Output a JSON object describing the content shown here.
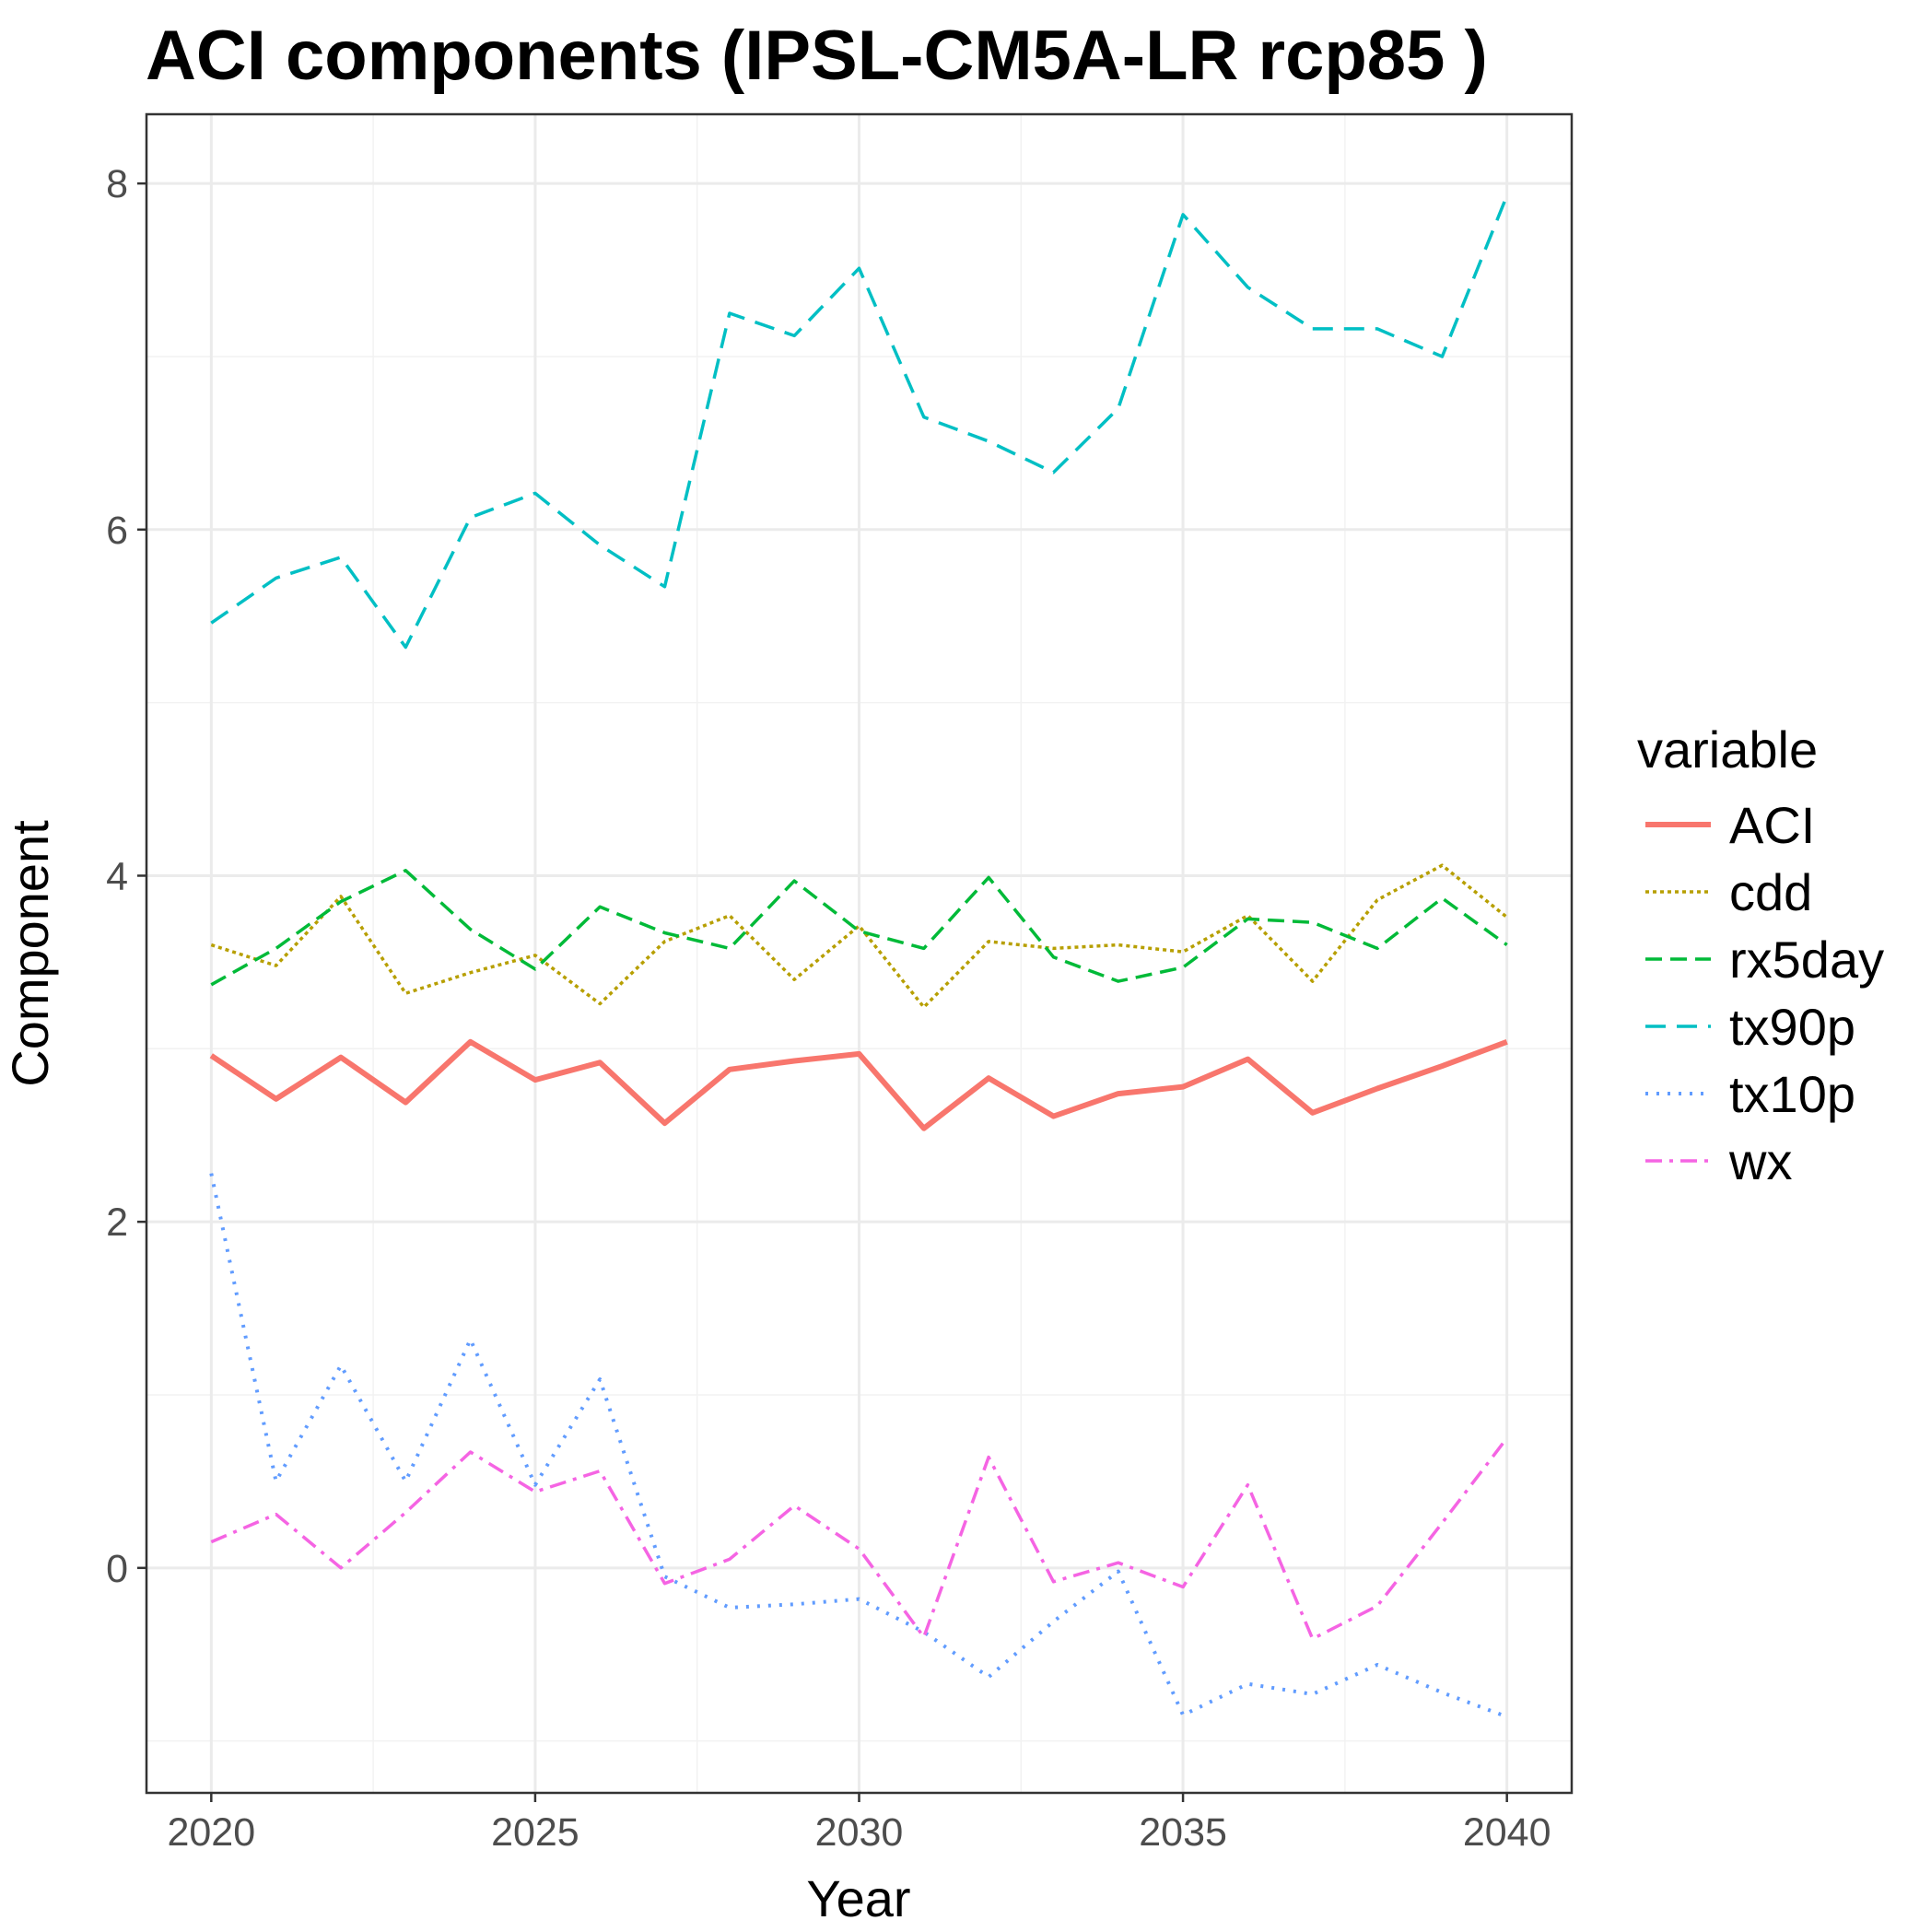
{
  "chart_data": {
    "type": "line",
    "title": "ACI components (IPSL-CM5A-LR rcp85 )",
    "xlabel": "Year",
    "ylabel": "Component",
    "x": [
      2020,
      2021,
      2022,
      2023,
      2024,
      2025,
      2026,
      2027,
      2028,
      2029,
      2030,
      2031,
      2032,
      2033,
      2034,
      2035,
      2036,
      2037,
      2038,
      2039,
      2040
    ],
    "xlim": [
      2019,
      2041
    ],
    "ylim": [
      -1.3,
      8.4
    ],
    "x_ticks": [
      "2020",
      "2025",
      "2030",
      "2035",
      "2040"
    ],
    "y_ticks": [
      "0",
      "2",
      "4",
      "6",
      "8"
    ],
    "grid": true,
    "legend_title": "variable",
    "legend_position": "right",
    "series": [
      {
        "name": "ACI",
        "color": "#F8766D",
        "dash": "solid",
        "width": 6,
        "values": [
          2.96,
          2.71,
          2.95,
          2.69,
          3.04,
          2.82,
          2.92,
          2.57,
          2.88,
          2.93,
          2.97,
          2.54,
          2.83,
          2.61,
          2.74,
          2.78,
          2.94,
          2.63,
          2.77,
          2.9,
          3.04
        ]
      },
      {
        "name": "cdd",
        "color": "#B79F00",
        "dash": "4 4",
        "width": 3.5,
        "values": [
          3.6,
          3.48,
          3.88,
          3.32,
          3.44,
          3.54,
          3.26,
          3.62,
          3.77,
          3.4,
          3.71,
          3.24,
          3.62,
          3.58,
          3.6,
          3.56,
          3.77,
          3.39,
          3.86,
          4.06,
          3.76
        ]
      },
      {
        "name": "rx5day",
        "color": "#00BA38",
        "dash": "18 9",
        "width": 3.5,
        "values": [
          3.37,
          3.58,
          3.85,
          4.03,
          3.69,
          3.46,
          3.82,
          3.67,
          3.58,
          3.97,
          3.68,
          3.58,
          3.99,
          3.53,
          3.39,
          3.47,
          3.75,
          3.73,
          3.58,
          3.87,
          3.6
        ]
      },
      {
        "name": "tx90p",
        "color": "#00BFC4",
        "dash": "22 12",
        "width": 3.5,
        "values": [
          5.46,
          5.72,
          5.84,
          5.32,
          6.07,
          6.21,
          5.91,
          5.67,
          7.25,
          7.12,
          7.51,
          6.65,
          6.51,
          6.33,
          6.7,
          7.82,
          7.4,
          7.16,
          7.16,
          7.0,
          7.93
        ]
      },
      {
        "name": "tx10p",
        "color": "#619CFF",
        "dash": "3 9",
        "width": 4,
        "values": [
          2.28,
          0.5,
          1.17,
          0.5,
          1.32,
          0.48,
          1.09,
          -0.05,
          -0.23,
          -0.21,
          -0.18,
          -0.37,
          -0.63,
          -0.31,
          -0.02,
          -0.85,
          -0.67,
          -0.73,
          -0.56,
          -0.72,
          -0.86
        ]
      },
      {
        "name": "wx",
        "color": "#F564E3",
        "dash": "18 8 4 8",
        "width": 3.5,
        "values": [
          0.15,
          0.31,
          0.0,
          0.32,
          0.67,
          0.44,
          0.56,
          -0.09,
          0.05,
          0.36,
          0.11,
          -0.4,
          0.64,
          -0.08,
          0.03,
          -0.11,
          0.48,
          -0.41,
          -0.22,
          0.26,
          0.75
        ]
      }
    ]
  }
}
